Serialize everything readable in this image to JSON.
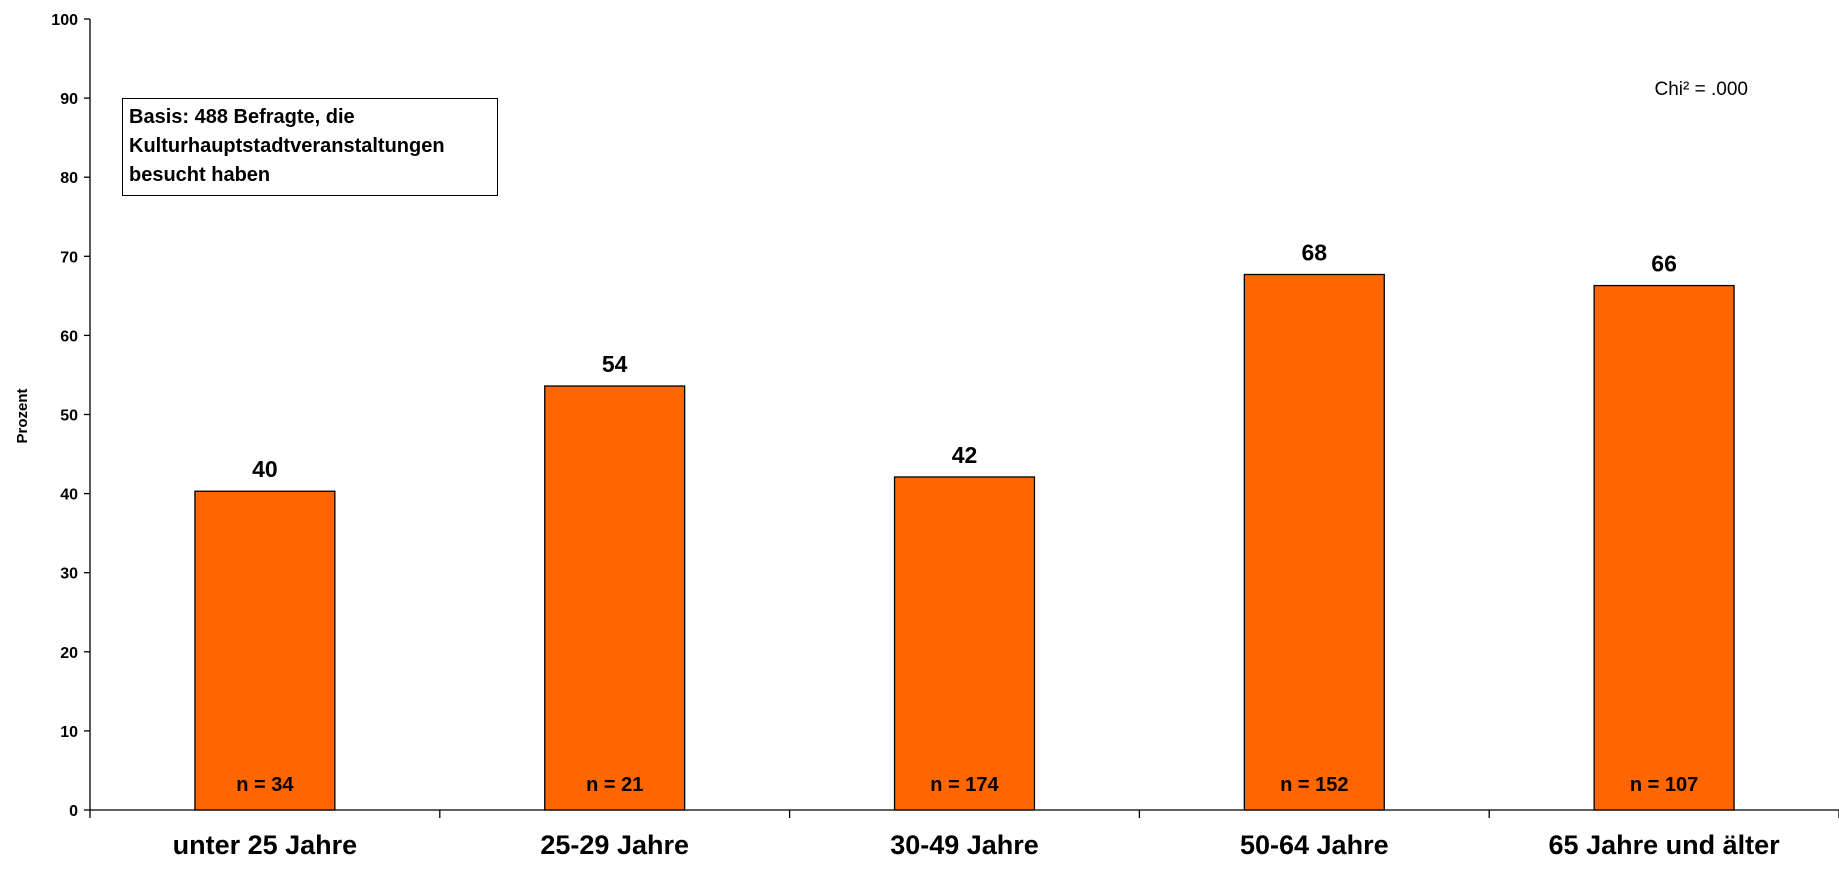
{
  "chart_data": {
    "type": "bar",
    "categories": [
      "unter 25 Jahre",
      "25-29 Jahre",
      "30-49 Jahre",
      "50-64 Jahre",
      "65 Jahre und älter"
    ],
    "values": [
      40.3,
      53.6,
      42.1,
      67.7,
      66.3
    ],
    "value_labels": [
      "40",
      "54",
      "42",
      "68",
      "66"
    ],
    "n_labels": [
      "n = 34",
      "n = 21",
      "n = 174",
      "n = 152",
      "n = 107"
    ],
    "ylabel": "Prozent",
    "ylim": [
      0,
      100
    ],
    "yticks": [
      "0",
      "10",
      "20",
      "30",
      "40",
      "50",
      "60",
      "70",
      "80",
      "90",
      "100"
    ],
    "bar_color": "#FF6600",
    "grid": false,
    "annotation": {
      "basis_lines": [
        "Basis: 488 Befragte, die",
        "Kulturhauptstadtveranstaltungen",
        "besucht haben"
      ],
      "stat": "Chi² = .000"
    }
  }
}
